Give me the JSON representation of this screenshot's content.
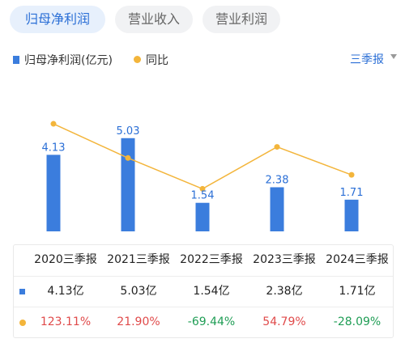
{
  "tabs": [
    {
      "label": "归母净利润",
      "active": true
    },
    {
      "label": "营业收入",
      "active": false
    },
    {
      "label": "营业利润",
      "active": false
    }
  ],
  "legend": {
    "bar_label": "归母净利润(亿元)",
    "line_label": "同比"
  },
  "period_selector": {
    "label": "三季报"
  },
  "colors": {
    "bar": "#3b7ddd",
    "line": "#f3b53b",
    "accent": "#2b6fd6",
    "positive": "#e04a4a",
    "negative": "#1f9d55"
  },
  "chart_data": {
    "type": "bar",
    "categories": [
      "2020三季报",
      "2021三季报",
      "2022三季报",
      "2023三季报",
      "2024三季报"
    ],
    "series": [
      {
        "name": "归母净利润(亿元)",
        "type": "bar",
        "values": [
          4.13,
          5.03,
          1.54,
          2.38,
          1.71
        ],
        "labels": [
          "4.13",
          "5.03",
          "1.54",
          "2.38",
          "1.71"
        ]
      },
      {
        "name": "同比",
        "type": "line",
        "values": [
          123.11,
          21.9,
          -69.44,
          54.79,
          -28.09
        ]
      }
    ],
    "ylim": [
      0,
      5.5
    ],
    "line_ylim": [
      -90,
      140
    ],
    "grid": false
  },
  "table": {
    "headers": [
      "2020三季报",
      "2021三季报",
      "2022三季报",
      "2023三季报",
      "2024三季报"
    ],
    "profit_row": [
      "4.13亿",
      "5.03亿",
      "1.54亿",
      "2.38亿",
      "1.71亿"
    ],
    "yoy_row": [
      "123.11%",
      "21.90%",
      "-69.44%",
      "54.79%",
      "-28.09%"
    ]
  }
}
